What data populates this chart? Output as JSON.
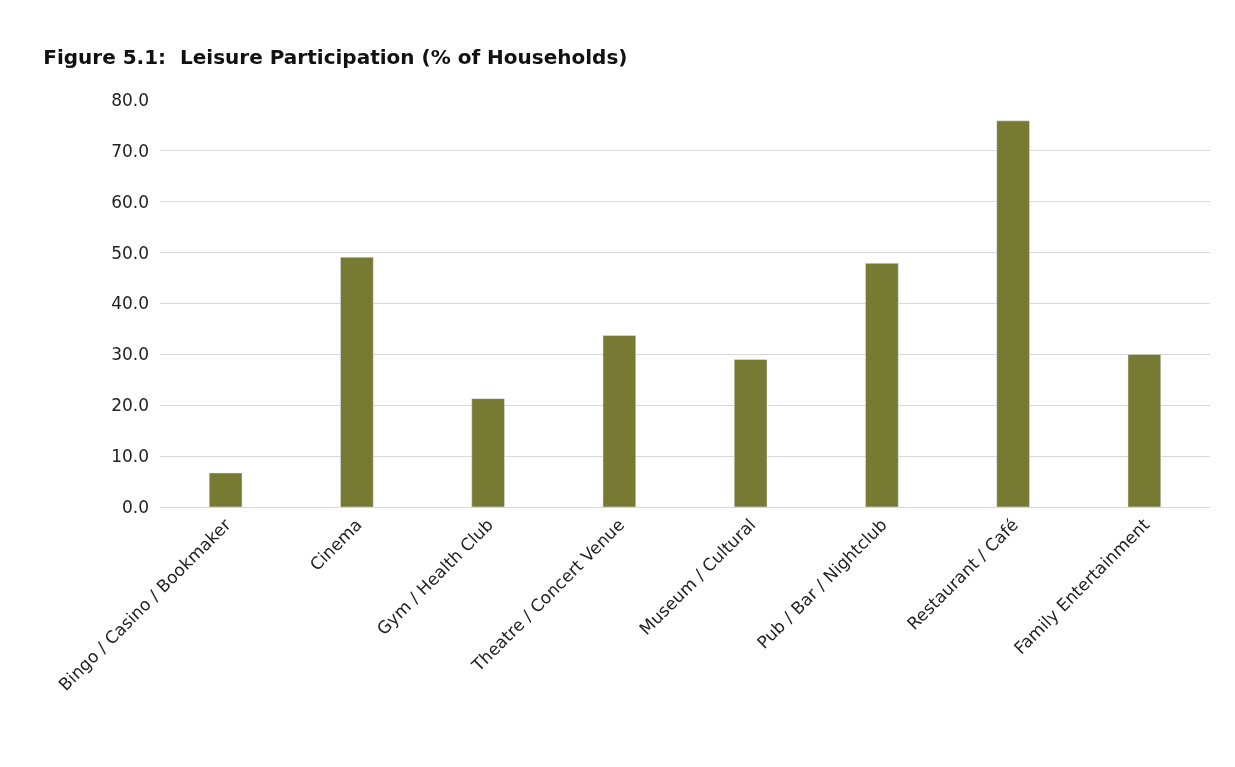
{
  "chart_data": {
    "type": "bar",
    "title": "Figure 5.1:  Leisure Participation (% of Households)",
    "categories": [
      "Bingo / Casino / Bookmaker",
      "Cinema",
      "Gym / Health Club",
      "Theatre / Concert Venue",
      "Museum / Cultural",
      "Pub / Bar / Nightclub",
      "Restaurant / Café",
      "Family Entertainment"
    ],
    "values": [
      6.7,
      49.1,
      21.3,
      33.7,
      29.0,
      47.9,
      75.9,
      30.0
    ],
    "color": "#767a33",
    "ylim": [
      0,
      80
    ],
    "yticks": [
      {
        "value": 0,
        "label": "0.0"
      },
      {
        "value": 10,
        "label": "10.0"
      },
      {
        "value": 20,
        "label": "20.0"
      },
      {
        "value": 30,
        "label": "30.0"
      },
      {
        "value": 40,
        "label": "40.0"
      },
      {
        "value": 50,
        "label": "50.0"
      },
      {
        "value": 60,
        "label": "60.0"
      },
      {
        "value": 70,
        "label": "70.0"
      },
      {
        "value": 80,
        "label": "80.0"
      }
    ],
    "grid": "y"
  }
}
